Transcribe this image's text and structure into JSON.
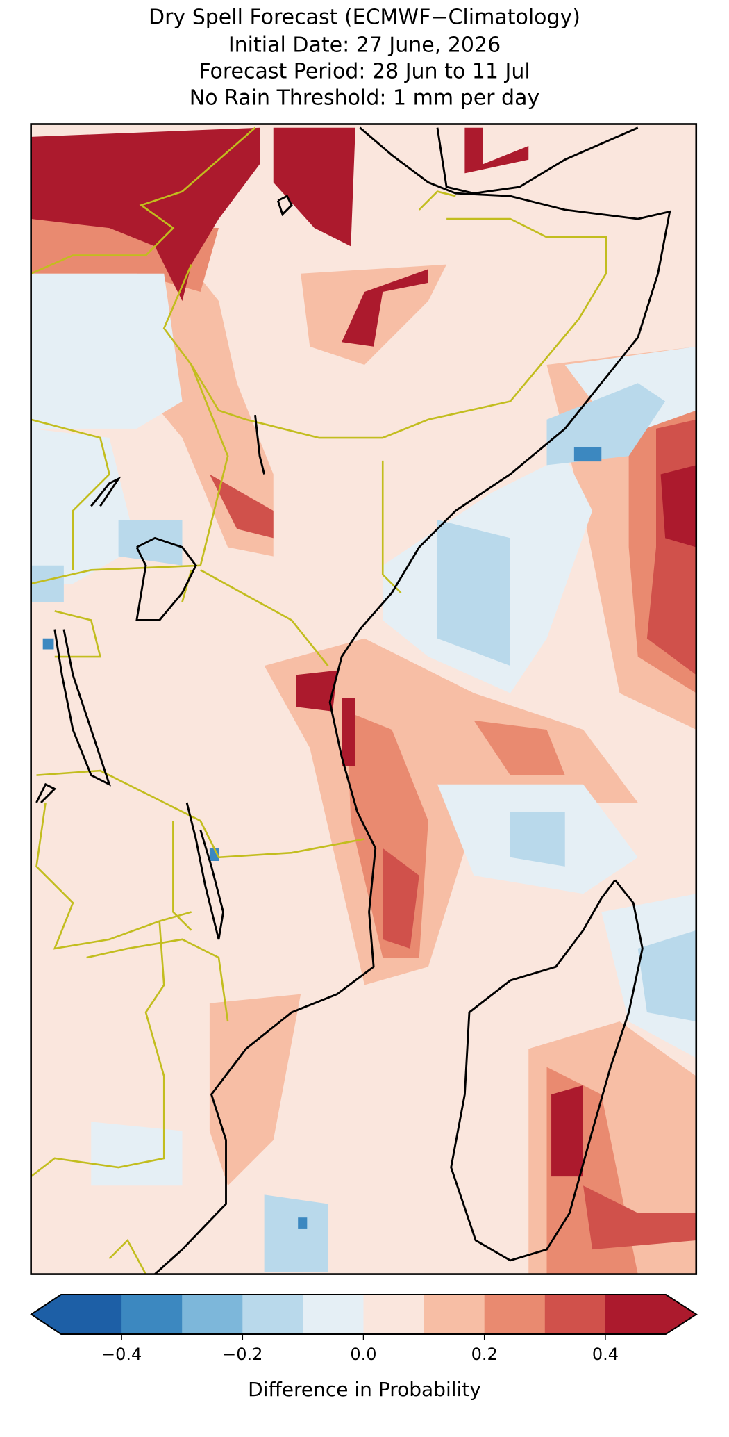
{
  "header": {
    "title_lines": [
      "Dry Spell Forecast (ECMWF−Climatology)",
      "Initial Date: 27 June, 2026",
      "Forecast Period: 28 Jun to 11 Jul",
      "No Rain Threshold: 1 mm per day"
    ]
  },
  "chart_data": {
    "type": "colorbar",
    "label": "Difference in Probability",
    "boundaries": [
      -0.5,
      -0.4,
      -0.3,
      -0.2,
      -0.1,
      0,
      0.1,
      0.2,
      0.3,
      0.4,
      0.5
    ],
    "colors": [
      "#1d5fa6",
      "#3c88c0",
      "#7db7da",
      "#b9d9eb",
      "#e5eff5",
      "#fae6dd",
      "#f7bea5",
      "#e98a70",
      "#d0514b",
      "#ac1a2d"
    ],
    "xlim": [
      -0.5,
      0.5
    ],
    "xticks": [
      {
        "value": -0.4,
        "label": "−0.4"
      },
      {
        "value": -0.2,
        "label": "−0.2"
      },
      {
        "value": 0,
        "label": "0.0"
      },
      0.2,
      0.4
    ]
  }
}
